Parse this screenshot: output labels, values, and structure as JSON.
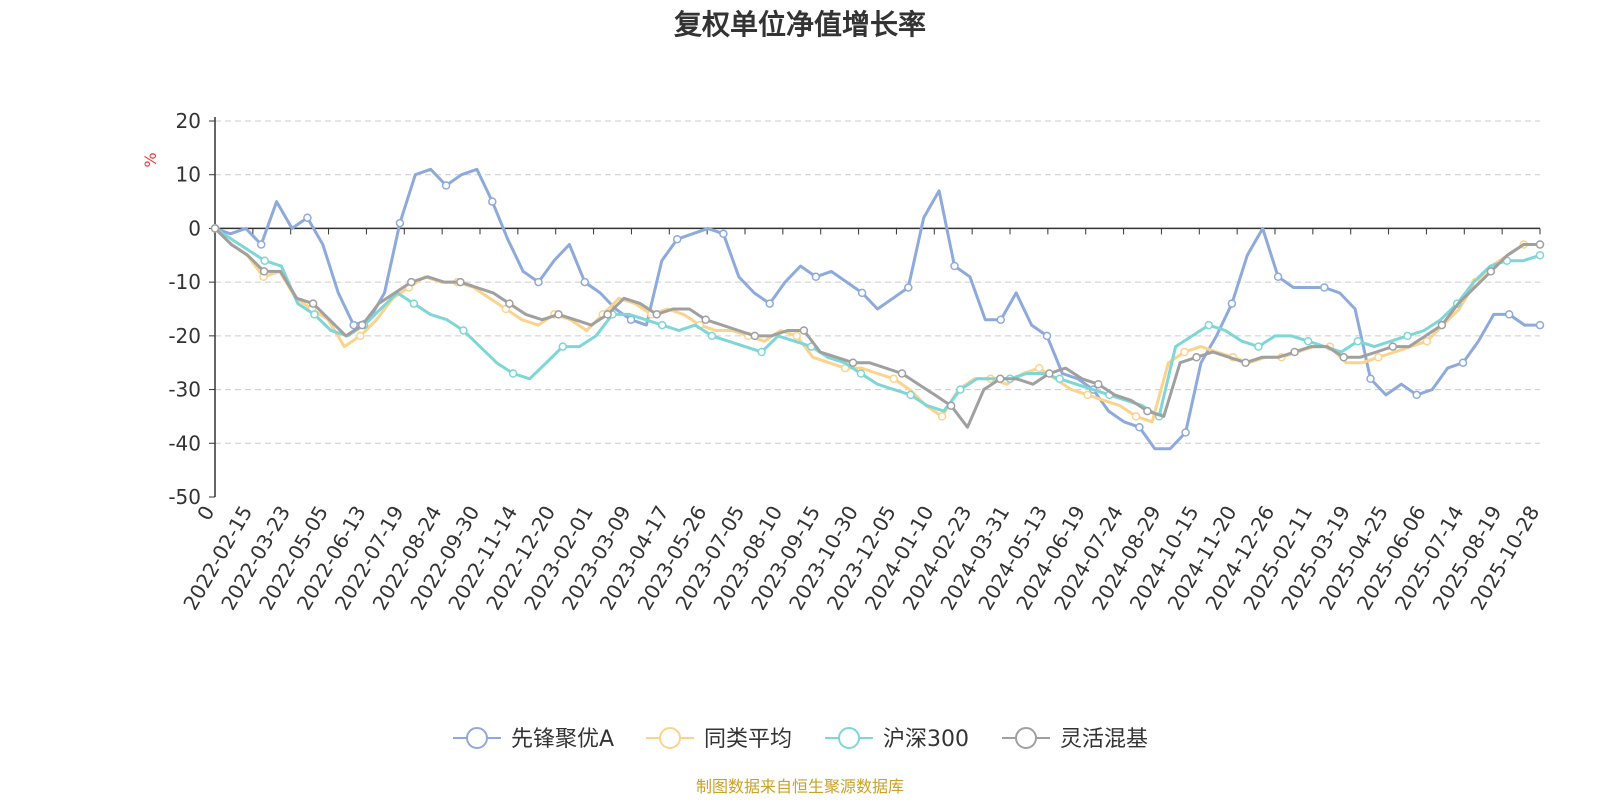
{
  "chart_data": {
    "type": "line",
    "title": "复权单位净值增长率",
    "ylabel": "%",
    "ylim": [
      -50,
      20
    ],
    "yticks": [
      20,
      10,
      0,
      -10,
      -20,
      -30,
      -40,
      -50
    ],
    "x_tick_labels": [
      "0",
      "2022-02-15",
      "2022-03-23",
      "2022-05-05",
      "2022-06-13",
      "2022-07-19",
      "2022-08-24",
      "2022-09-30",
      "2022-11-14",
      "2022-12-20",
      "2023-02-01",
      "2023-03-09",
      "2023-04-17",
      "2023-05-26",
      "2023-07-05",
      "2023-08-10",
      "2023-09-15",
      "2023-10-30",
      "2023-12-05",
      "2024-01-10",
      "2024-02-23",
      "2024-03-31",
      "2024-05-13",
      "2024-06-19",
      "2024-07-24",
      "2024-08-29",
      "2024-10-15",
      "2024-11-20",
      "2024-12-26",
      "2025-02-11",
      "2025-03-19",
      "2025-04-25",
      "2025-06-06",
      "2025-07-14",
      "2025-08-19",
      "2025-10-28"
    ],
    "grid": true,
    "legend_position": "bottom",
    "source_text": "制图数据来自恒生聚源数据库",
    "series": [
      {
        "name": "先锋聚优A",
        "color": "#8eaadb",
        "values": [
          0,
          -1,
          0,
          -3,
          5,
          0,
          2,
          -3,
          -12,
          -18,
          -17,
          -12,
          1,
          10,
          11,
          8,
          10,
          11,
          5,
          -2,
          -8,
          -10,
          -6,
          -3,
          -10,
          -12,
          -15,
          -17,
          -18,
          -6,
          -2,
          -1,
          0,
          -1,
          -9,
          -12,
          -14,
          -10,
          -7,
          -9,
          -8,
          -10,
          -12,
          -15,
          -13,
          -11,
          2,
          7,
          -7,
          -9,
          -17,
          -17,
          -12,
          -18,
          -20,
          -27,
          -28,
          -30,
          -34,
          -36,
          -37,
          -41,
          -41,
          -38,
          -25,
          -20,
          -14,
          -5,
          0,
          -9,
          -11,
          -11,
          -11,
          -12,
          -15,
          -28,
          -31,
          -29,
          -31,
          -30,
          -26,
          -25,
          -21,
          -16,
          -16,
          -18,
          -18
        ]
      },
      {
        "name": "同类平均",
        "color": "#fbd38d",
        "values": [
          0,
          -3,
          -5,
          -9,
          -8,
          -13,
          -15,
          -17,
          -22,
          -20,
          -17,
          -13,
          -11,
          -9,
          -10,
          -10,
          -11,
          -13,
          -15,
          -17,
          -18,
          -16,
          -17,
          -19,
          -16,
          -13,
          -14,
          -16,
          -15,
          -16,
          -18,
          -19,
          -19,
          -20,
          -21,
          -19,
          -20,
          -24,
          -25,
          -26,
          -26,
          -27,
          -28,
          -30,
          -33,
          -35,
          -30,
          -28,
          -28,
          -29,
          -27,
          -26,
          -28,
          -30,
          -31,
          -32,
          -33,
          -35,
          -36,
          -25,
          -23,
          -22,
          -23,
          -24,
          -25,
          -24,
          -24,
          -23,
          -22,
          -22,
          -25,
          -25,
          -24,
          -23,
          -22,
          -21,
          -18,
          -15,
          -10,
          -7,
          -5,
          -3,
          -3
        ]
      },
      {
        "name": "沪深300",
        "color": "#7fd6d6",
        "values": [
          0,
          -2,
          -4,
          -6,
          -7,
          -14,
          -16,
          -19,
          -20,
          -18,
          -15,
          -12,
          -14,
          -16,
          -17,
          -19,
          -22,
          -25,
          -27,
          -28,
          -25,
          -22,
          -22,
          -20,
          -16,
          -16,
          -17,
          -18,
          -19,
          -18,
          -20,
          -21,
          -22,
          -23,
          -20,
          -21,
          -22,
          -24,
          -25,
          -27,
          -29,
          -30,
          -31,
          -33,
          -34,
          -30,
          -28,
          -28,
          -28,
          -27,
          -27,
          -28,
          -29,
          -30,
          -31,
          -32,
          -33,
          -35,
          -22,
          -20,
          -18,
          -19,
          -21,
          -22,
          -20,
          -20,
          -21,
          -22,
          -23,
          -21,
          -22,
          -21,
          -20,
          -19,
          -17,
          -14,
          -10,
          -7,
          -6,
          -6,
          -5
        ]
      },
      {
        "name": "灵活混基",
        "color": "#a0a0a0",
        "values": [
          0,
          -3,
          -5,
          -8,
          -8,
          -13,
          -14,
          -17,
          -20,
          -18,
          -14,
          -12,
          -10,
          -9,
          -10,
          -10,
          -11,
          -12,
          -14,
          -16,
          -17,
          -16,
          -17,
          -18,
          -16,
          -13,
          -14,
          -16,
          -15,
          -15,
          -17,
          -18,
          -19,
          -20,
          -20,
          -19,
          -19,
          -23,
          -24,
          -25,
          -25,
          -26,
          -27,
          -29,
          -31,
          -33,
          -37,
          -30,
          -28,
          -28,
          -29,
          -27,
          -26,
          -28,
          -29,
          -31,
          -32,
          -34,
          -35,
          -25,
          -24,
          -23,
          -24,
          -25,
          -24,
          -24,
          -23,
          -22,
          -22,
          -24,
          -24,
          -23,
          -22,
          -22,
          -20,
          -18,
          -14,
          -11,
          -8,
          -5,
          -3,
          -3
        ]
      }
    ]
  }
}
